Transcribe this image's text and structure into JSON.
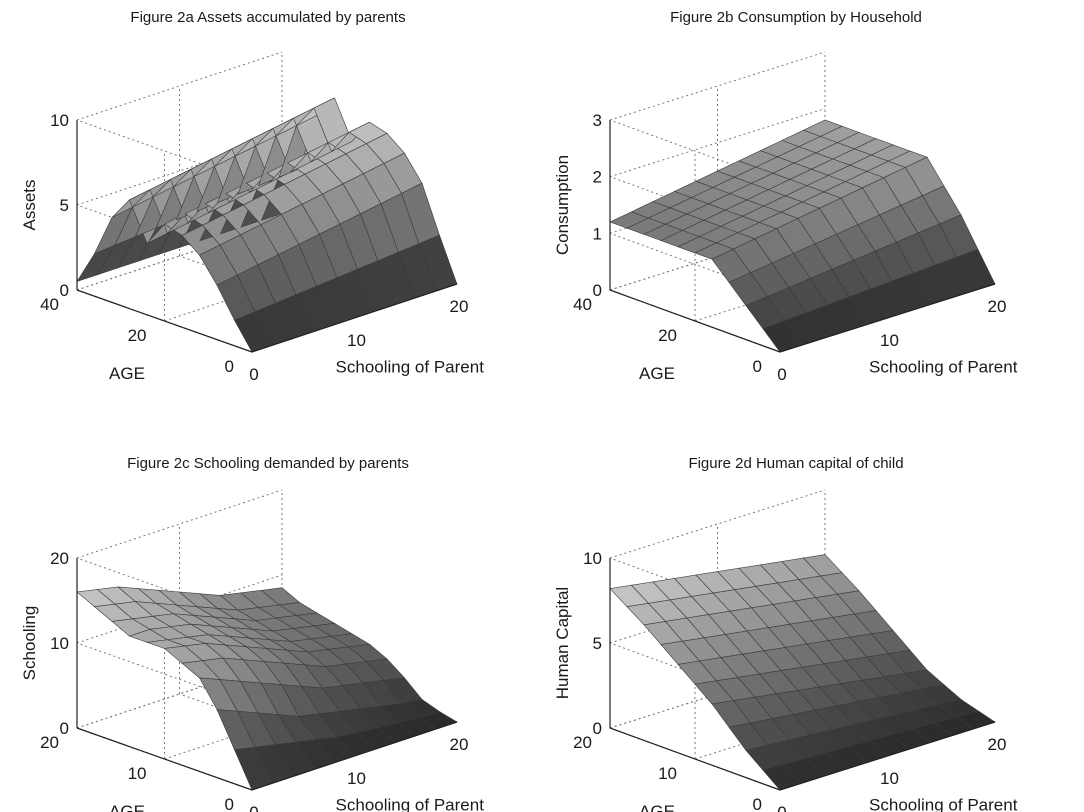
{
  "chart_data": [
    {
      "id": "fig2a",
      "type": "surface",
      "title": "Figure 2a Assets accumulated by parents",
      "xlabel": "Schooling of Parent",
      "ylabel": "AGE",
      "zlabel": "Assets",
      "xlim": [
        0,
        20
      ],
      "ylim": [
        0,
        40
      ],
      "zlim": [
        0,
        10
      ],
      "x_ticks": [
        "0",
        "10",
        "20"
      ],
      "y_ticks": [
        "0",
        "20",
        "40"
      ],
      "z_ticks": [
        "0",
        "5",
        "10"
      ],
      "x": [
        0,
        2,
        4,
        6,
        8,
        10,
        12,
        14,
        16,
        18,
        20
      ],
      "y": [
        0,
        4,
        8,
        12,
        16,
        20,
        24,
        28,
        32,
        36,
        40
      ],
      "z": [
        [
          0.0,
          0.0,
          0.0,
          0.0,
          0.0,
          0.0,
          0.0,
          0.0,
          0.0,
          0.0,
          0.0
        ],
        [
          1.5,
          1.6,
          1.7,
          1.8,
          1.9,
          2.0,
          2.1,
          2.2,
          2.3,
          2.4,
          2.5
        ],
        [
          3.2,
          3.4,
          3.6,
          3.8,
          4.0,
          4.2,
          4.4,
          4.6,
          4.8,
          5.0,
          5.2
        ],
        [
          4.6,
          4.8,
          5.0,
          5.2,
          5.4,
          5.6,
          5.8,
          6.0,
          6.2,
          6.4,
          6.6
        ],
        [
          5.4,
          5.6,
          5.8,
          6.0,
          6.2,
          6.4,
          6.6,
          6.8,
          7.0,
          7.2,
          7.4
        ],
        [
          5.7,
          5.9,
          6.1,
          6.3,
          6.5,
          6.7,
          6.9,
          7.1,
          7.3,
          7.5,
          7.7
        ],
        [
          4.2,
          4.4,
          4.6,
          4.8,
          5.0,
          5.2,
          5.4,
          5.6,
          5.8,
          6.0,
          6.2
        ],
        [
          6.4,
          6.6,
          6.8,
          7.0,
          7.2,
          7.4,
          7.6,
          7.8,
          8.0,
          8.2,
          8.4
        ],
        [
          5.0,
          5.2,
          5.4,
          5.6,
          5.8,
          6.0,
          6.2,
          6.4,
          6.6,
          6.8,
          7.0
        ],
        [
          2.5,
          2.6,
          2.7,
          2.8,
          2.9,
          3.0,
          3.1,
          3.2,
          3.3,
          3.4,
          3.5
        ],
        [
          0.5,
          0.5,
          0.5,
          0.5,
          0.5,
          0.5,
          0.5,
          0.5,
          0.5,
          0.5,
          0.5
        ]
      ],
      "grid": true
    },
    {
      "id": "fig2b",
      "type": "surface",
      "title": "Figure 2b Consumption by Household",
      "xlabel": "Schooling of Parent",
      "ylabel": "AGE",
      "zlabel": "Consumption",
      "xlim": [
        0,
        20
      ],
      "ylim": [
        0,
        40
      ],
      "zlim": [
        0,
        3
      ],
      "x_ticks": [
        "0",
        "10",
        "20"
      ],
      "y_ticks": [
        "0",
        "20",
        "40"
      ],
      "z_ticks": [
        "0",
        "1",
        "2",
        "3"
      ],
      "x": [
        0,
        2,
        4,
        6,
        8,
        10,
        12,
        14,
        16,
        18,
        20
      ],
      "y": [
        0,
        4,
        8,
        12,
        16,
        20,
        24,
        28,
        32,
        36,
        40
      ],
      "z": [
        [
          0.0,
          0.0,
          0.0,
          0.0,
          0.0,
          0.0,
          0.0,
          0.0,
          0.0,
          0.0,
          0.0
        ],
        [
          0.3,
          0.32,
          0.34,
          0.36,
          0.38,
          0.4,
          0.42,
          0.44,
          0.46,
          0.48,
          0.5
        ],
        [
          0.6,
          0.64,
          0.68,
          0.72,
          0.76,
          0.8,
          0.84,
          0.88,
          0.92,
          0.96,
          1.0
        ],
        [
          0.9,
          0.95,
          1.0,
          1.05,
          1.1,
          1.15,
          1.2,
          1.25,
          1.3,
          1.35,
          1.4
        ],
        [
          1.2,
          1.26,
          1.32,
          1.38,
          1.44,
          1.5,
          1.56,
          1.62,
          1.68,
          1.74,
          1.8
        ],
        [
          1.2,
          1.26,
          1.32,
          1.38,
          1.44,
          1.5,
          1.56,
          1.62,
          1.68,
          1.74,
          1.8
        ],
        [
          1.2,
          1.26,
          1.32,
          1.38,
          1.44,
          1.5,
          1.56,
          1.62,
          1.68,
          1.74,
          1.8
        ],
        [
          1.2,
          1.26,
          1.32,
          1.38,
          1.44,
          1.5,
          1.56,
          1.62,
          1.68,
          1.74,
          1.8
        ],
        [
          1.2,
          1.26,
          1.32,
          1.38,
          1.44,
          1.5,
          1.56,
          1.62,
          1.68,
          1.74,
          1.8
        ],
        [
          1.2,
          1.26,
          1.32,
          1.38,
          1.44,
          1.5,
          1.56,
          1.62,
          1.68,
          1.74,
          1.8
        ],
        [
          1.2,
          1.26,
          1.32,
          1.38,
          1.44,
          1.5,
          1.56,
          1.62,
          1.68,
          1.74,
          1.8
        ]
      ],
      "grid": true
    },
    {
      "id": "fig2c",
      "type": "surface",
      "title": "Figure 2c Schooling demanded by parents",
      "xlabel": "Schooling of Parent",
      "ylabel": "AGE",
      "zlabel": "Schooling",
      "xlim": [
        0,
        20
      ],
      "ylim": [
        0,
        20
      ],
      "zlim": [
        0,
        20
      ],
      "x_ticks": [
        "0",
        "10",
        "20"
      ],
      "y_ticks": [
        "0",
        "10",
        "20"
      ],
      "z_ticks": [
        "0",
        "10",
        "20"
      ],
      "x": [
        0,
        2,
        4,
        6,
        8,
        10,
        12,
        14,
        16,
        18,
        20
      ],
      "y": [
        0,
        2,
        4,
        6,
        8,
        10,
        12,
        14,
        16,
        18,
        20
      ],
      "z": [
        [
          0,
          0,
          0,
          0,
          0,
          0,
          0,
          0,
          0,
          0,
          0
        ],
        [
          4,
          3.5,
          3,
          2.5,
          2,
          1.5,
          1.2,
          1,
          0.8,
          0.6,
          0.5
        ],
        [
          8,
          7,
          6,
          5,
          4,
          3.5,
          3,
          2.5,
          2,
          1.5,
          1.2
        ],
        [
          11,
          10,
          9,
          8,
          7,
          6,
          5,
          4.5,
          4,
          3.5,
          3
        ],
        [
          12,
          11.5,
          11,
          10,
          9,
          8,
          7,
          6,
          5.5,
          5,
          4.5
        ],
        [
          13,
          12.5,
          12,
          11,
          10,
          9,
          8,
          7,
          6.5,
          6,
          5.5
        ],
        [
          13,
          12.5,
          12,
          11.5,
          10.5,
          9.5,
          8.5,
          7.5,
          7,
          6.5,
          6
        ],
        [
          13,
          13,
          12.5,
          12,
          11,
          10,
          9,
          8,
          7.5,
          7,
          6.5
        ],
        [
          14,
          13.5,
          13,
          12.5,
          11.5,
          10.5,
          9.5,
          8.5,
          8,
          7.5,
          7
        ],
        [
          15,
          14.5,
          14,
          13,
          12,
          11,
          10,
          9,
          8.5,
          8,
          7.5
        ],
        [
          16,
          15.5,
          15,
          14,
          13,
          12,
          11,
          10,
          9.5,
          9,
          8.5
        ]
      ],
      "grid": true
    },
    {
      "id": "fig2d",
      "type": "surface",
      "title": "Figure 2d Human capital of child",
      "xlabel": "Schooling of Parent",
      "ylabel": "AGE",
      "zlabel": "Human Capital",
      "xlim": [
        0,
        20
      ],
      "ylim": [
        0,
        20
      ],
      "zlim": [
        0,
        10
      ],
      "x_ticks": [
        "0",
        "10",
        "20"
      ],
      "y_ticks": [
        "0",
        "10",
        "20"
      ],
      "z_ticks": [
        "0",
        "5",
        "10"
      ],
      "x": [
        0,
        2,
        4,
        6,
        8,
        10,
        12,
        14,
        16,
        18,
        20
      ],
      "y": [
        0,
        2,
        4,
        6,
        8,
        10,
        12,
        14,
        16,
        18,
        20
      ],
      "z": [
        [
          0,
          0,
          0,
          0,
          0,
          0,
          0,
          0,
          0,
          0,
          0
        ],
        [
          0.8,
          0.75,
          0.7,
          0.65,
          0.6,
          0.55,
          0.5,
          0.45,
          0.4,
          0.35,
          0.3
        ],
        [
          1.6,
          1.5,
          1.4,
          1.3,
          1.2,
          1.1,
          1.0,
          0.9,
          0.8,
          0.7,
          0.6
        ],
        [
          2.6,
          2.45,
          2.3,
          2.15,
          2.0,
          1.85,
          1.7,
          1.55,
          1.4,
          1.25,
          1.1
        ],
        [
          3.6,
          3.4,
          3.2,
          3.0,
          2.8,
          2.6,
          2.4,
          2.2,
          2.0,
          1.8,
          1.6
        ],
        [
          4.4,
          4.2,
          4.0,
          3.8,
          3.6,
          3.4,
          3.2,
          3.0,
          2.8,
          2.6,
          2.4
        ],
        [
          5.2,
          5.0,
          4.8,
          4.6,
          4.4,
          4.2,
          4.0,
          3.8,
          3.6,
          3.4,
          3.2
        ],
        [
          6.0,
          5.8,
          5.6,
          5.4,
          5.2,
          5.0,
          4.8,
          4.6,
          4.4,
          4.2,
          4.0
        ],
        [
          6.8,
          6.6,
          6.4,
          6.2,
          6.0,
          5.8,
          5.6,
          5.4,
          5.2,
          5.0,
          4.8
        ],
        [
          7.5,
          7.3,
          7.1,
          6.9,
          6.7,
          6.5,
          6.3,
          6.1,
          5.9,
          5.7,
          5.5
        ],
        [
          8.2,
          8.0,
          7.8,
          7.6,
          7.4,
          7.2,
          7.0,
          6.8,
          6.6,
          6.4,
          6.2
        ]
      ],
      "grid": true
    }
  ]
}
